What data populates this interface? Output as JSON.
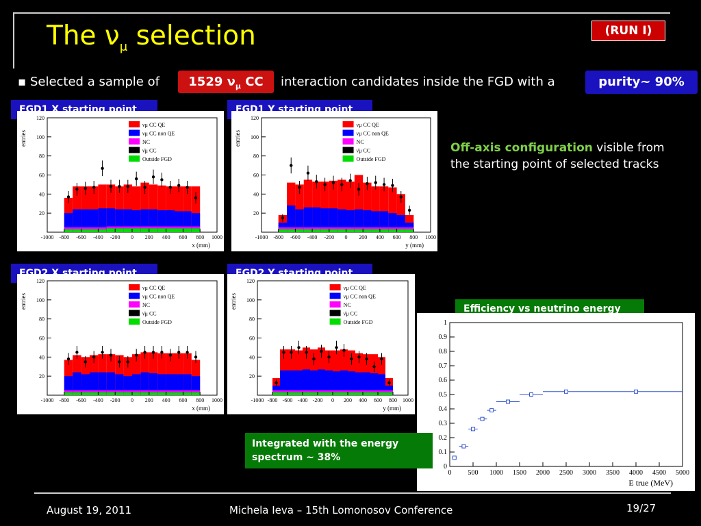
{
  "slide": {
    "title_main": "The ν",
    "title_sub": "μ",
    "title_rest": " selection",
    "run_badge": "(RUN I)",
    "bullet_marker": "▪",
    "bullet_text": "Selected a sample of",
    "sample_count": "1529 ν",
    "sample_sub": "μ",
    "sample_rest": " CC",
    "bullet_text2": "interaction candidates inside the FGD with a",
    "purity": "purity~ 90%",
    "description_highlight": "Off-axis configuration",
    "description_rest": " visible from the starting point of selected tracks",
    "efficiency_label": "Efficiency vs neutrino energy",
    "integrated_label": "Integrated with the energy spectrum ~ 38%"
  },
  "footer": {
    "date": "August 19, 2011",
    "author": "Michela Ieva – 15th Lomonosov Conference",
    "page": "19/27"
  },
  "colors": {
    "cc_qe": "#ff0000",
    "cc_nonqe": "#0000ff",
    "nc": "#ff00ff",
    "anti": "#000000",
    "outside": "#00dd00",
    "title": "#ffff00",
    "label_blue": "#1a12bf",
    "label_green": "#067a06"
  },
  "chart_data": [
    {
      "type": "bar",
      "panel_label": "FGD1 X starting point",
      "ylabel": "entries",
      "xlabel": "x (mm)",
      "xlim": [
        -1000,
        1000
      ],
      "ylim": [
        0,
        120
      ],
      "xticks": [
        -1000,
        -800,
        -600,
        -400,
        -200,
        0,
        200,
        400,
        600,
        800,
        1000
      ],
      "yticks": [
        20,
        40,
        60,
        80,
        100,
        120
      ],
      "legend": [
        "CC QE",
        "CC non QE",
        "NC",
        "CC",
        "Outside FGD"
      ],
      "bins_x": [
        -800,
        -700,
        -600,
        -500,
        -400,
        -300,
        -200,
        -100,
        0,
        100,
        200,
        300,
        400,
        500,
        600,
        700,
        800
      ],
      "series": [
        {
          "name": "Outside FGD",
          "values": [
            3,
            3,
            3,
            3,
            3,
            4,
            4,
            4,
            4,
            4,
            4,
            4,
            4,
            4,
            4,
            4
          ]
        },
        {
          "name": "NC",
          "values": [
            2,
            2,
            2,
            2,
            2,
            2,
            2,
            2,
            2,
            2,
            2,
            2,
            2,
            2,
            2,
            2
          ]
        },
        {
          "name": "CC QE total",
          "values": [
            36,
            48,
            48,
            48,
            50,
            50,
            48,
            50,
            48,
            52,
            50,
            49,
            48,
            48,
            48,
            48
          ]
        },
        {
          "name": "CC non QE total",
          "values": [
            20,
            24,
            24,
            24,
            25,
            25,
            24,
            24,
            23,
            24,
            24,
            23,
            23,
            22,
            22,
            20
          ]
        }
      ],
      "points": [
        37,
        45,
        46,
        47,
        67,
        48,
        48,
        48,
        56,
        47,
        58,
        55,
        47,
        49,
        47,
        36
      ]
    },
    {
      "type": "bar",
      "panel_label": "FGD1 Y starting point",
      "ylabel": "entries",
      "xlabel": "y (mm)",
      "xlim": [
        -1000,
        1000
      ],
      "ylim": [
        0,
        120
      ],
      "xticks": [
        -1000,
        -800,
        -600,
        -400,
        -200,
        0,
        200,
        400,
        600,
        800,
        1000
      ],
      "yticks": [
        20,
        40,
        60,
        80,
        100,
        120
      ],
      "legend": [
        "CC QE",
        "CC non QE",
        "NC",
        "CC",
        "Outside FGD"
      ],
      "bins_x": [
        -800,
        -700,
        -600,
        -500,
        -400,
        -300,
        -200,
        -100,
        0,
        100,
        200,
        300,
        400,
        500,
        600,
        700,
        800
      ],
      "series": [
        {
          "name": "Outside FGD",
          "values": [
            3,
            3,
            3,
            3,
            3,
            3,
            3,
            3,
            3,
            3,
            3,
            3,
            3,
            3,
            3,
            3
          ]
        },
        {
          "name": "NC",
          "values": [
            2,
            2,
            2,
            2,
            2,
            2,
            2,
            2,
            2,
            2,
            2,
            2,
            2,
            2,
            2,
            2
          ]
        },
        {
          "name": "CC QE total",
          "values": [
            18,
            52,
            50,
            55,
            53,
            53,
            54,
            55,
            53,
            60,
            52,
            48,
            48,
            47,
            40,
            18
          ]
        },
        {
          "name": "CC non QE total",
          "values": [
            10,
            28,
            24,
            26,
            26,
            25,
            25,
            24,
            23,
            24,
            23,
            22,
            22,
            20,
            18,
            10
          ]
        }
      ],
      "points": [
        15,
        70,
        47,
        62,
        53,
        50,
        52,
        50,
        54,
        45,
        51,
        52,
        50,
        49,
        37,
        23
      ]
    },
    {
      "type": "bar",
      "panel_label": "FGD2 X starting point",
      "ylabel": "entries",
      "xlabel": "x (mm)",
      "xlim": [
        -1000,
        1000
      ],
      "ylim": [
        0,
        120
      ],
      "xticks": [
        -1000,
        -800,
        -600,
        -400,
        -200,
        0,
        200,
        400,
        600,
        800,
        1000
      ],
      "yticks": [
        20,
        40,
        60,
        80,
        100,
        120
      ],
      "legend": [
        "CC QE",
        "CC non QE",
        "NC",
        "CC",
        "Outside FGD"
      ],
      "bins_x": [
        -800,
        -700,
        -600,
        -500,
        -400,
        -300,
        -200,
        -100,
        0,
        100,
        200,
        300,
        400,
        500,
        600,
        700,
        800
      ],
      "series": [
        {
          "name": "Outside FGD",
          "values": [
            3,
            3,
            3,
            3,
            3,
            3,
            3,
            3,
            3,
            3,
            3,
            3,
            3,
            3,
            3,
            3
          ]
        },
        {
          "name": "NC",
          "values": [
            2,
            2,
            2,
            2,
            2,
            2,
            2,
            2,
            2,
            2,
            2,
            2,
            2,
            2,
            2,
            2
          ]
        },
        {
          "name": "CC QE total",
          "values": [
            37,
            42,
            40,
            42,
            43,
            43,
            42,
            40,
            43,
            45,
            45,
            44,
            44,
            44,
            44,
            37
          ]
        },
        {
          "name": "CC non QE total",
          "values": [
            20,
            24,
            22,
            24,
            24,
            24,
            22,
            20,
            22,
            24,
            23,
            22,
            22,
            22,
            22,
            20
          ]
        }
      ],
      "points": [
        38,
        45,
        35,
        40,
        45,
        42,
        35,
        35,
        42,
        45,
        45,
        45,
        42,
        45,
        45,
        40
      ]
    },
    {
      "type": "bar",
      "panel_label": "FGD2 Y starting point",
      "ylabel": "entries",
      "xlabel": "y (mm)",
      "xlim": [
        -1000,
        1000
      ],
      "ylim": [
        0,
        120
      ],
      "xticks": [
        -1000,
        -800,
        -600,
        -400,
        -200,
        0,
        200,
        400,
        600,
        800,
        1000
      ],
      "yticks": [
        20,
        40,
        60,
        80,
        100,
        120
      ],
      "legend": [
        "CC QE",
        "CC non QE",
        "NC",
        "CC",
        "Outside FGD"
      ],
      "bins_x": [
        -800,
        -700,
        -600,
        -500,
        -400,
        -300,
        -200,
        -100,
        0,
        100,
        200,
        300,
        400,
        500,
        600,
        700,
        800
      ],
      "series": [
        {
          "name": "Outside FGD",
          "values": [
            3,
            3,
            3,
            3,
            3,
            3,
            3,
            3,
            3,
            3,
            3,
            3,
            3,
            3,
            3,
            3
          ]
        },
        {
          "name": "NC",
          "values": [
            2,
            2,
            2,
            2,
            2,
            2,
            2,
            2,
            2,
            2,
            2,
            2,
            2,
            2,
            2,
            2
          ]
        },
        {
          "name": "CC QE total",
          "values": [
            18,
            48,
            48,
            47,
            50,
            48,
            50,
            47,
            47,
            48,
            47,
            44,
            43,
            43,
            40,
            18
          ]
        },
        {
          "name": "CC non QE total",
          "values": [
            10,
            26,
            26,
            26,
            27,
            26,
            27,
            26,
            25,
            26,
            25,
            24,
            24,
            23,
            22,
            10
          ]
        }
      ],
      "points": [
        13,
        45,
        45,
        50,
        45,
        38,
        46,
        40,
        50,
        47,
        38,
        40,
        38,
        30,
        38,
        13
      ]
    },
    {
      "type": "scatter",
      "panel_label": "Efficiency vs neutrino energy",
      "xlabel": "E true (MeV)",
      "xlim": [
        0,
        5000
      ],
      "ylim": [
        0,
        1
      ],
      "xticks": [
        0,
        500,
        1000,
        1500,
        2000,
        2500,
        3000,
        3500,
        4000,
        4500,
        5000
      ],
      "yticks": [
        0,
        0.1,
        0.2,
        0.3,
        0.4,
        0.5,
        0.6,
        0.7,
        0.8,
        0.9,
        1
      ],
      "points": [
        {
          "x": 100,
          "y": 0.06,
          "xerr": 50
        },
        {
          "x": 300,
          "y": 0.14,
          "xerr": 100
        },
        {
          "x": 500,
          "y": 0.26,
          "xerr": 100
        },
        {
          "x": 700,
          "y": 0.33,
          "xerr": 100
        },
        {
          "x": 900,
          "y": 0.39,
          "xerr": 100
        },
        {
          "x": 1250,
          "y": 0.45,
          "xerr": 250
        },
        {
          "x": 1750,
          "y": 0.5,
          "xerr": 250
        },
        {
          "x": 2500,
          "y": 0.52,
          "xerr": 500
        },
        {
          "x": 4000,
          "y": 0.52,
          "xerr": 1000
        }
      ]
    }
  ]
}
